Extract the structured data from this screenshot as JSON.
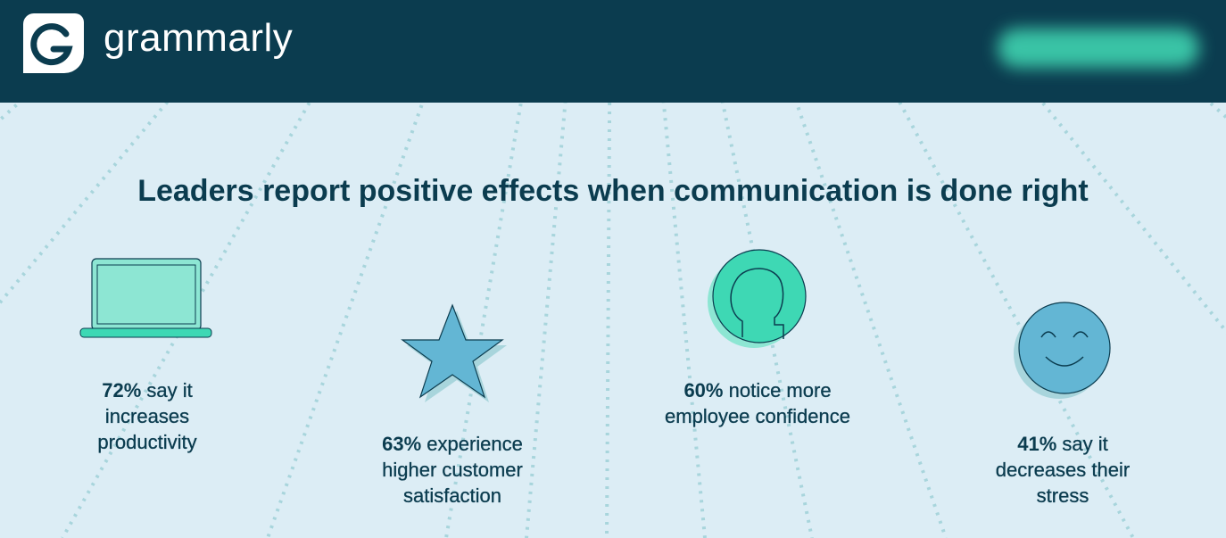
{
  "header": {
    "logo_text": "grammarly"
  },
  "title": "Leaders report positive effects when communication is done right",
  "items": [
    {
      "stat": "72%",
      "text": "say it increases productivity"
    },
    {
      "stat": "63%",
      "text": "experience higher customer satisfaction"
    },
    {
      "stat": "60%",
      "text": "notice more employee confidence"
    },
    {
      "stat": "41%",
      "text": "say it decreases their stress"
    }
  ]
}
